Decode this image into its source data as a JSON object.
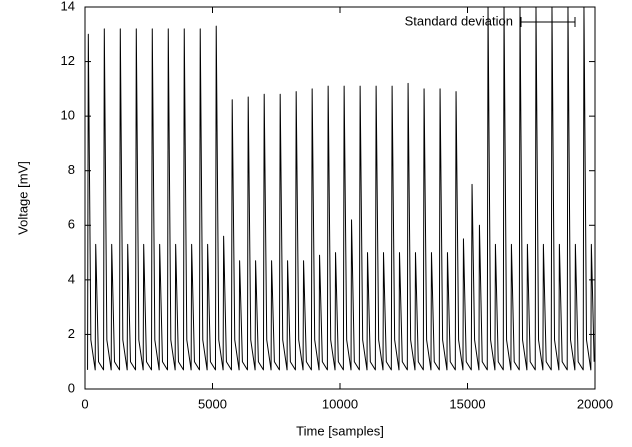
{
  "chart_data": {
    "type": "line",
    "xlabel": "Time [samples]",
    "ylabel": "Voltage [mV]",
    "xlim": [
      0,
      20000
    ],
    "xticks": [
      0,
      5000,
      10000,
      15000,
      20000
    ],
    "ylim": [
      0,
      14
    ],
    "yticks": [
      0,
      2,
      4,
      6,
      8,
      10,
      12,
      14
    ],
    "legend": "top-right",
    "grid": false,
    "series": [
      {
        "name": "Standard deviation",
        "color": "#000000",
        "x": [
          100,
          130,
          230,
          400,
          420,
          530,
          727,
          757,
          857,
          1027,
          1047,
          1157,
          1354,
          1384,
          1484,
          1654,
          1674,
          1784,
          1981,
          2011,
          2111,
          2281,
          2301,
          2411,
          2608,
          2638,
          2738,
          2908,
          2928,
          3038,
          3235,
          3265,
          3365,
          3535,
          3555,
          3665,
          3862,
          3892,
          3992,
          4162,
          4182,
          4292,
          4489,
          4519,
          4619,
          4789,
          4809,
          4919,
          5116,
          5146,
          5246,
          5416,
          5436,
          5546,
          5743,
          5773,
          5873,
          6043,
          6063,
          6173,
          6370,
          6400,
          6500,
          6670,
          6690,
          6800,
          6997,
          7027,
          7127,
          7297,
          7317,
          7427,
          7624,
          7654,
          7754,
          7924,
          7944,
          8054,
          8251,
          8281,
          8381,
          8551,
          8571,
          8681,
          8878,
          8908,
          9008,
          9178,
          9198,
          9308,
          9505,
          9535,
          9635,
          9805,
          9825,
          9935,
          10132,
          10162,
          10262,
          10432,
          10452,
          10562,
          10759,
          10789,
          10889,
          11059,
          11079,
          11189,
          11386,
          11416,
          11516,
          11686,
          11706,
          11816,
          12013,
          12043,
          12143,
          12313,
          12333,
          12443,
          12640,
          12670,
          12770,
          12940,
          12960,
          13070,
          13267,
          13297,
          13397,
          13567,
          13587,
          13697,
          13894,
          13924,
          14024,
          14194,
          14214,
          14324,
          14521,
          14551,
          14651,
          14821,
          14841,
          14951,
          15148,
          15178,
          15278,
          15448,
          15468,
          15578,
          15775,
          15805,
          15905,
          16075,
          16095,
          16205,
          16402,
          16432,
          16532,
          16702,
          16722,
          16832,
          17029,
          17059,
          17159,
          17329,
          17349,
          17459,
          17656,
          17686,
          17786,
          17956,
          17976,
          18086,
          18283,
          18313,
          18413,
          18583,
          18603,
          18713,
          18910,
          18940,
          19040,
          19210,
          19230,
          19340,
          19537,
          19567,
          19667,
          19837,
          19857,
          19967
        ],
        "values": [
          0.7,
          13.0,
          1.8,
          0.7,
          5.3,
          1.0,
          0.7,
          13.2,
          1.8,
          0.7,
          5.3,
          1.0,
          0.7,
          13.2,
          1.8,
          0.7,
          5.3,
          1.0,
          0.7,
          13.2,
          1.8,
          0.7,
          5.3,
          1.0,
          0.7,
          13.2,
          1.8,
          0.7,
          5.3,
          1.0,
          0.7,
          13.2,
          1.8,
          0.7,
          5.3,
          1.0,
          0.7,
          13.2,
          1.8,
          0.7,
          5.3,
          1.0,
          0.7,
          13.2,
          1.8,
          0.7,
          5.3,
          1.0,
          0.7,
          13.3,
          1.8,
          0.7,
          5.6,
          1.0,
          0.7,
          10.6,
          1.8,
          0.7,
          4.7,
          1.0,
          0.7,
          10.7,
          1.8,
          0.7,
          4.7,
          1.0,
          0.7,
          10.8,
          1.8,
          0.7,
          4.7,
          1.0,
          0.7,
          10.8,
          1.8,
          0.7,
          4.7,
          1.0,
          0.7,
          10.9,
          1.8,
          0.7,
          4.7,
          1.0,
          0.7,
          11.0,
          1.8,
          0.7,
          4.9,
          1.0,
          0.7,
          11.1,
          1.8,
          0.7,
          5.0,
          1.0,
          0.7,
          11.1,
          1.8,
          0.7,
          6.2,
          1.0,
          0.7,
          11.1,
          1.8,
          0.7,
          5.0,
          1.0,
          0.7,
          11.1,
          1.8,
          0.7,
          5.0,
          1.0,
          0.7,
          11.1,
          1.8,
          0.7,
          5.0,
          1.0,
          0.7,
          11.2,
          1.8,
          0.7,
          5.0,
          1.0,
          0.7,
          11.0,
          1.8,
          0.7,
          5.0,
          1.0,
          0.7,
          11.0,
          1.8,
          0.7,
          5.0,
          1.0,
          0.7,
          10.9,
          1.8,
          0.7,
          5.5,
          1.0,
          0.7,
          7.5,
          1.8,
          0.7,
          6.0,
          1.0,
          0.7,
          14,
          1.8,
          0.7,
          5.3,
          1.0,
          0.7,
          14,
          1.8,
          0.7,
          5.3,
          1.0,
          0.7,
          14,
          1.8,
          0.7,
          5.3,
          1.0,
          0.7,
          14,
          1.8,
          0.7,
          5.3,
          1.0,
          0.7,
          14,
          1.8,
          0.7,
          5.3,
          1.0,
          0.7,
          14,
          1.8,
          0.7,
          5.3,
          1.0,
          0.7,
          14,
          1.8,
          0.7,
          5.3,
          1.0
        ]
      }
    ]
  }
}
